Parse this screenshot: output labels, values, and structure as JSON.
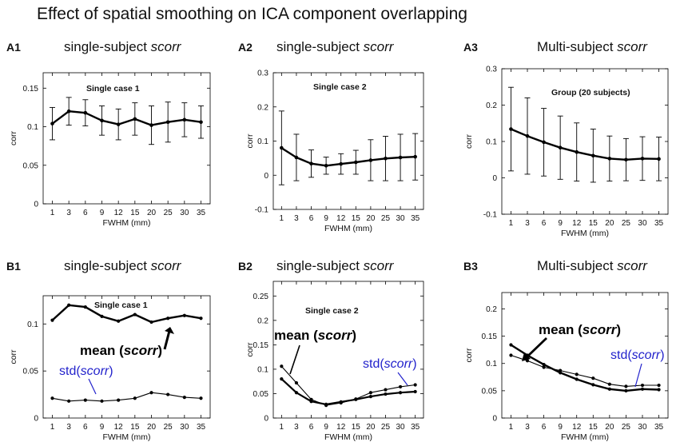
{
  "figure": {
    "title": "Effect of spatial smoothing on ICA component overlapping"
  },
  "colors": {
    "line": "#000000",
    "std_annotation": "#2222cc"
  },
  "chart_data": [
    {
      "id": "A1",
      "type": "line",
      "label": "A1",
      "heading_plain": "single-subject ",
      "heading_italic": "scorr",
      "inner_title": "Single case 1",
      "xlabel": "FWHM (mm)",
      "ylabel": "corr",
      "categories": [
        "1",
        "3",
        "6",
        "9",
        "12",
        "15",
        "20",
        "25",
        "30",
        "35"
      ],
      "ylim": [
        0,
        0.17
      ],
      "yticks": [
        0,
        0.05,
        0.1,
        0.15
      ],
      "ytick_labels": [
        "0",
        "0.05",
        "0.1",
        "0.15"
      ],
      "series": [
        {
          "name": "mean",
          "values": [
            0.104,
            0.12,
            0.118,
            0.108,
            0.103,
            0.11,
            0.102,
            0.106,
            0.109,
            0.106
          ],
          "errors": [
            0.021,
            0.018,
            0.017,
            0.019,
            0.02,
            0.021,
            0.025,
            0.026,
            0.022,
            0.021
          ]
        }
      ]
    },
    {
      "id": "A2",
      "type": "line",
      "label": "A2",
      "heading_plain": "single-subject ",
      "heading_italic": "scorr",
      "inner_title": "Single case 2",
      "xlabel": "FWHM (mm)",
      "ylabel": "corr",
      "categories": [
        "1",
        "3",
        "6",
        "9",
        "12",
        "15",
        "20",
        "25",
        "30",
        "35"
      ],
      "ylim": [
        -0.1,
        0.3
      ],
      "yticks": [
        -0.1,
        0,
        0.1,
        0.2,
        0.3
      ],
      "ytick_labels": [
        "-0.1",
        "0",
        "0.1",
        "0.2",
        "0.3"
      ],
      "series": [
        {
          "name": "mean",
          "values": [
            0.08,
            0.052,
            0.034,
            0.028,
            0.033,
            0.038,
            0.044,
            0.049,
            0.052,
            0.054
          ],
          "errors": [
            0.108,
            0.068,
            0.04,
            0.025,
            0.03,
            0.035,
            0.06,
            0.065,
            0.068,
            0.068
          ]
        }
      ]
    },
    {
      "id": "A3",
      "type": "line",
      "label": "A3",
      "heading_plain": "Multi-subject ",
      "heading_italic": "scorr",
      "inner_title": "Group (20 subjects)",
      "xlabel": "FWHM (mm)",
      "ylabel": "corr",
      "categories": [
        "1",
        "3",
        "6",
        "9",
        "12",
        "15",
        "20",
        "25",
        "30",
        "35"
      ],
      "ylim": [
        -0.1,
        0.3
      ],
      "yticks": [
        -0.1,
        0,
        0.1,
        0.2,
        0.3
      ],
      "ytick_labels": [
        "-0.1",
        "0",
        "0.1",
        "0.2",
        "0.3"
      ],
      "series": [
        {
          "name": "mean",
          "values": [
            0.134,
            0.115,
            0.098,
            0.083,
            0.071,
            0.061,
            0.053,
            0.05,
            0.053,
            0.052
          ],
          "errors": [
            0.115,
            0.105,
            0.093,
            0.087,
            0.08,
            0.073,
            0.062,
            0.058,
            0.06,
            0.06
          ]
        }
      ]
    },
    {
      "id": "B1",
      "type": "line",
      "label": "B1",
      "heading_plain": "single-subject ",
      "heading_italic": "scorr",
      "inner_title": "Single case 1",
      "xlabel": "FWHM (mm)",
      "ylabel": "corr",
      "categories": [
        "1",
        "3",
        "6",
        "9",
        "12",
        "15",
        "20",
        "25",
        "30",
        "35"
      ],
      "ylim": [
        0,
        0.13
      ],
      "yticks": [
        0,
        0.05,
        0.1
      ],
      "ytick_labels": [
        "0",
        "0.05",
        "0.1"
      ],
      "series": [
        {
          "name": "mean",
          "values": [
            0.104,
            0.12,
            0.118,
            0.108,
            0.103,
            0.11,
            0.102,
            0.106,
            0.109,
            0.106
          ]
        },
        {
          "name": "std",
          "values": [
            0.021,
            0.018,
            0.019,
            0.018,
            0.019,
            0.021,
            0.027,
            0.025,
            0.022,
            0.021
          ]
        }
      ],
      "annotations": {
        "mean_plain": "mean (",
        "mean_italic": "scorr",
        "mean_close": ")",
        "std_plain": "std(",
        "std_italic": "scorr",
        "std_close": ")"
      }
    },
    {
      "id": "B2",
      "type": "line",
      "label": "B2",
      "heading_plain": "single-subject ",
      "heading_italic": "scorr",
      "inner_title": "Single case 2",
      "xlabel": "FWHM (mm)",
      "ylabel": "corr",
      "categories": [
        "1",
        "3",
        "6",
        "9",
        "12",
        "15",
        "20",
        "25",
        "30",
        "35"
      ],
      "ylim": [
        0,
        0.28
      ],
      "yticks": [
        0,
        0.05,
        0.1,
        0.15,
        0.2,
        0.25
      ],
      "ytick_labels": [
        "0",
        "0.05",
        "0.1",
        "0.15",
        "0.2",
        "0.25"
      ],
      "series": [
        {
          "name": "mean",
          "values": [
            0.08,
            0.052,
            0.034,
            0.028,
            0.033,
            0.038,
            0.044,
            0.049,
            0.052,
            0.054
          ]
        },
        {
          "name": "std",
          "values": [
            0.106,
            0.072,
            0.038,
            0.026,
            0.031,
            0.039,
            0.052,
            0.058,
            0.064,
            0.068
          ]
        }
      ],
      "annotations": {
        "mean_plain": "mean (",
        "mean_italic": "scorr",
        "mean_close": ")",
        "std_plain": "std(",
        "std_italic": "scorr",
        "std_close": ")"
      }
    },
    {
      "id": "B3",
      "type": "line",
      "label": "B3",
      "heading_plain": "Multi-subject ",
      "heading_italic": "scorr",
      "inner_title": "",
      "xlabel": "FWHM (mm)",
      "ylabel": "corr",
      "categories": [
        "1",
        "3",
        "6",
        "9",
        "12",
        "15",
        "20",
        "25",
        "30",
        "35"
      ],
      "ylim": [
        0,
        0.23
      ],
      "yticks": [
        0,
        0.05,
        0.1,
        0.15,
        0.2
      ],
      "ytick_labels": [
        "0",
        "0.05",
        "0.1",
        "0.15",
        "0.2"
      ],
      "series": [
        {
          "name": "mean",
          "values": [
            0.134,
            0.115,
            0.098,
            0.083,
            0.071,
            0.061,
            0.053,
            0.05,
            0.053,
            0.052
          ]
        },
        {
          "name": "std",
          "values": [
            0.115,
            0.105,
            0.093,
            0.087,
            0.08,
            0.073,
            0.062,
            0.058,
            0.06,
            0.06
          ]
        }
      ],
      "annotations": {
        "mean_plain": "mean (",
        "mean_italic": "scorr",
        "mean_close": ")",
        "std_plain": "std(",
        "std_italic": "scorr",
        "std_close": ")"
      }
    }
  ]
}
